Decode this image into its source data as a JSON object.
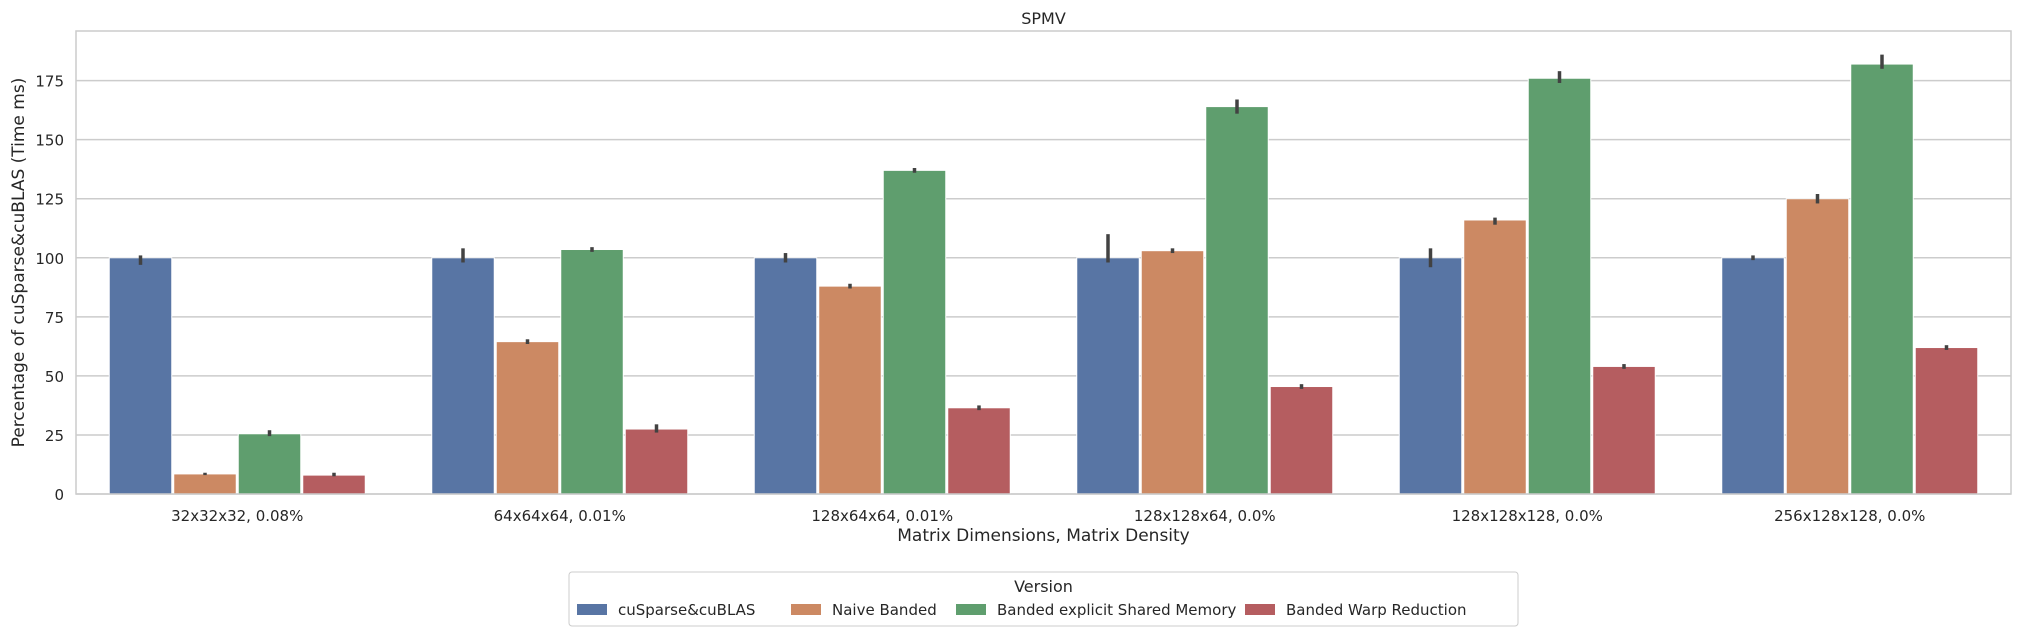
{
  "chart_data": {
    "type": "bar",
    "title": "SPMV",
    "xlabel": "Matrix Dimensions, Matrix Density",
    "ylabel": "Percentage of cuSparse&cuBLAS (Time ms)",
    "ylim": [
      0,
      196
    ],
    "yticks": [
      0,
      25,
      50,
      75,
      100,
      125,
      150,
      175
    ],
    "grid": "y",
    "categories": [
      "32x32x32, 0.08%",
      "64x64x64, 0.01%",
      "128x64x64, 0.01%",
      "128x128x64, 0.0%",
      "128x128x128, 0.0%",
      "256x128x128, 0.0%"
    ],
    "series": [
      {
        "name": "cuSparse&cuBLAS",
        "color": "#5875a4",
        "values": [
          100,
          100,
          100,
          100,
          100,
          100
        ],
        "err": [
          [
            97,
            101
          ],
          [
            98,
            104
          ],
          [
            98,
            102
          ],
          [
            98,
            110
          ],
          [
            96,
            104
          ],
          [
            99,
            101
          ]
        ]
      },
      {
        "name": "Naive Banded",
        "color": "#cc8963",
        "values": [
          8.5,
          64.5,
          88,
          103,
          116,
          125
        ],
        "err": [
          [
            8,
            9
          ],
          [
            63.5,
            65.5
          ],
          [
            87,
            89
          ],
          [
            102,
            104
          ],
          [
            114,
            117
          ],
          [
            123,
            127
          ]
        ]
      },
      {
        "name": "Banded explicit Shared Memory",
        "color": "#5f9e6e",
        "values": [
          25.5,
          103.5,
          137,
          164,
          176,
          182
        ],
        "err": [
          [
            24.5,
            27
          ],
          [
            102.5,
            104.5
          ],
          [
            136,
            138
          ],
          [
            161,
            167
          ],
          [
            174,
            179
          ],
          [
            180,
            186
          ]
        ]
      },
      {
        "name": "Banded Warp Reduction",
        "color": "#b55d60",
        "values": [
          8,
          27.5,
          36.5,
          45.5,
          54,
          62
        ],
        "err": [
          [
            7.5,
            9
          ],
          [
            26,
            29.5
          ],
          [
            35.5,
            37.5
          ],
          [
            44.5,
            46.5
          ],
          [
            53,
            55
          ],
          [
            61,
            63
          ]
        ]
      }
    ],
    "legend": {
      "title": "Version",
      "position": "bottom-center"
    }
  }
}
